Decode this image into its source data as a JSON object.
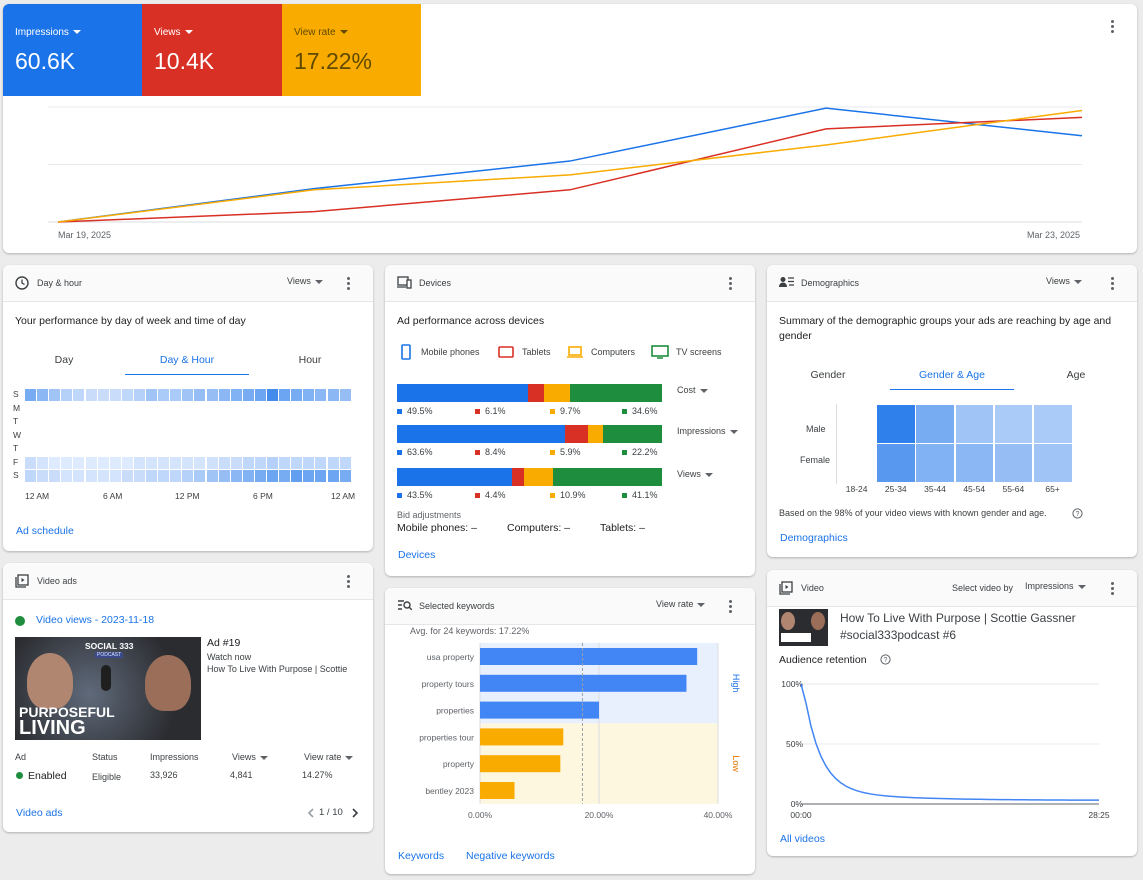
{
  "overview": {
    "kpis": [
      {
        "label": "Impressions",
        "value": "60.6K",
        "color": "#1a73e8"
      },
      {
        "label": "Views",
        "value": "10.4K",
        "color": "#d93025"
      },
      {
        "label": "View rate",
        "value": "17.22%",
        "color": "#f9ab00"
      }
    ],
    "x_start": "Mar 19, 2025",
    "x_end": "Mar 23, 2025"
  },
  "chart_data": {
    "type": "line",
    "x": [
      "Mar 19, 2025",
      "Mar 20, 2025",
      "Mar 21, 2025",
      "Mar 22, 2025",
      "Mar 23, 2025"
    ],
    "series": [
      {
        "name": "Impressions",
        "color": "#1a73e8",
        "values": [
          0,
          0.29,
          0.53,
          0.99,
          0.75
        ]
      },
      {
        "name": "Views",
        "color": "#d93025",
        "values": [
          0,
          0.09,
          0.28,
          0.81,
          0.91
        ]
      },
      {
        "name": "View rate",
        "color": "#f9ab00",
        "values": [
          0,
          0.28,
          0.41,
          0.67,
          0.97
        ]
      }
    ],
    "grid": true
  },
  "dayhour": {
    "title": "Day & hour",
    "metric": "Views",
    "subtitle": "Your performance by day of week and time of day",
    "tabs": [
      "Day",
      "Day & Hour",
      "Hour"
    ],
    "active_tab": 1,
    "days": [
      "S",
      "M",
      "T",
      "W",
      "T",
      "F",
      "S"
    ],
    "hours": [
      "12 AM",
      "6 AM",
      "12 PM",
      "6 PM",
      "12 AM"
    ],
    "link": "Ad schedule",
    "heat": [
      [
        0.55,
        0.45,
        0.35,
        0.25,
        0.2,
        0.15,
        0.15,
        0.15,
        0.2,
        0.25,
        0.35,
        0.3,
        0.3,
        0.35,
        0.4,
        0.4,
        0.45,
        0.5,
        0.55,
        0.6,
        0.8,
        0.6,
        0.55,
        0.5,
        0.45,
        0.45,
        0.4
      ],
      [
        0,
        0,
        0,
        0,
        0,
        0,
        0,
        0,
        0,
        0,
        0,
        0,
        0,
        0,
        0,
        0,
        0,
        0,
        0,
        0,
        0,
        0,
        0,
        0,
        0,
        0,
        0
      ],
      [
        0,
        0,
        0,
        0,
        0,
        0,
        0,
        0,
        0,
        0,
        0,
        0,
        0,
        0,
        0,
        0,
        0,
        0,
        0,
        0,
        0,
        0,
        0,
        0,
        0,
        0,
        0
      ],
      [
        0,
        0,
        0,
        0,
        0,
        0,
        0,
        0,
        0,
        0,
        0,
        0,
        0,
        0,
        0,
        0,
        0,
        0,
        0,
        0,
        0,
        0,
        0,
        0,
        0,
        0,
        0
      ],
      [
        0,
        0,
        0,
        0,
        0,
        0,
        0,
        0,
        0,
        0,
        0,
        0,
        0,
        0,
        0,
        0,
        0,
        0,
        0,
        0,
        0,
        0,
        0,
        0,
        0,
        0,
        0
      ],
      [
        0.15,
        0.1,
        0.05,
        0.05,
        0.05,
        0.05,
        0.05,
        0.05,
        0.05,
        0.1,
        0.1,
        0.1,
        0.1,
        0.1,
        0.1,
        0.12,
        0.15,
        0.15,
        0.2,
        0.2,
        0.25,
        0.2,
        0.2,
        0.2,
        0.2,
        0.2,
        0.2
      ],
      [
        0.2,
        0.15,
        0.15,
        0.1,
        0.1,
        0.1,
        0.1,
        0.1,
        0.15,
        0.15,
        0.2,
        0.2,
        0.2,
        0.25,
        0.3,
        0.35,
        0.4,
        0.45,
        0.5,
        0.55,
        0.6,
        0.55,
        0.65,
        0.6,
        0.6,
        0.6,
        0.55
      ]
    ]
  },
  "devices": {
    "title": "Devices",
    "subtitle": "Ad performance across devices",
    "legend": [
      {
        "label": "Mobile phones",
        "color": "#1a73e8",
        "icon": "mobile-phone-icon"
      },
      {
        "label": "Tablets",
        "color": "#d93025",
        "icon": "tablet-icon"
      },
      {
        "label": "Computers",
        "color": "#f9ab00",
        "icon": "computer-icon"
      },
      {
        "label": "TV screens",
        "color": "#1e8e3e",
        "icon": "tv-screen-icon"
      }
    ],
    "rows": [
      {
        "metric": "Cost",
        "values": [
          49.5,
          6.1,
          9.7,
          34.6
        ],
        "labels": [
          "49.5%",
          "6.1%",
          "9.7%",
          "34.6%"
        ]
      },
      {
        "metric": "Impressions",
        "values": [
          63.6,
          8.4,
          5.9,
          22.2
        ],
        "labels": [
          "63.6%",
          "8.4%",
          "5.9%",
          "22.2%"
        ]
      },
      {
        "metric": "Views",
        "values": [
          43.5,
          4.4,
          10.9,
          41.1
        ],
        "labels": [
          "43.5%",
          "4.4%",
          "10.9%",
          "41.1%"
        ]
      }
    ],
    "bid_title": "Bid adjustments",
    "bids": [
      "Mobile phones: –",
      "Computers: –",
      "Tablets: –"
    ],
    "link": "Devices"
  },
  "demographics": {
    "title": "Demographics",
    "metric": "Views",
    "subtitle": "Summary of the demographic groups your ads are reaching by age and gender",
    "tabs": [
      "Gender",
      "Gender & Age",
      "Age"
    ],
    "active_tab": 1,
    "genders": [
      "Male",
      "Female"
    ],
    "ages": [
      "18-24",
      "25-34",
      "35-44",
      "45-54",
      "55-64",
      "65+"
    ],
    "heat": [
      [
        0,
        0.9,
        0.55,
        0.35,
        0.3,
        0.3
      ],
      [
        0,
        0.7,
        0.5,
        0.45,
        0.4,
        0.35
      ]
    ],
    "note": "Based on the 98% of your video views with known gender and age.",
    "link": "Demographics"
  },
  "videoads": {
    "title": "Video ads",
    "status_title": "Video views - 2023-11-18",
    "ad_number": "Ad #19",
    "watch": "Watch now",
    "video_name": "How To Live With Purpose | Scottie",
    "thumb_brand": "SOCIAL 333",
    "thumb_sub": "PODCAST",
    "thumb_text1": "PURPOSEFUL",
    "thumb_text2": "LIVING",
    "cols": [
      "Ad",
      "Status",
      "Impressions",
      "Views",
      "View rate"
    ],
    "row": [
      "Enabled",
      "Eligible",
      "33,926",
      "4,841",
      "14.27%"
    ],
    "link": "Video ads",
    "pagination": "1 / 10"
  },
  "keywords": {
    "title": "Selected keywords",
    "metric": "View rate",
    "avg": "Avg. for 24 keywords: 17.22%",
    "items": [
      {
        "label": "usa property",
        "value": 36.5,
        "group": "High"
      },
      {
        "label": "property tours",
        "value": 34.7,
        "group": "High"
      },
      {
        "label": "properties",
        "value": 20.0,
        "group": "High"
      },
      {
        "label": "properties tour",
        "value": 14.0,
        "group": "Low"
      },
      {
        "label": "property",
        "value": 13.5,
        "group": "Low"
      },
      {
        "label": "bentley 2023",
        "value": 5.8,
        "group": "Low"
      }
    ],
    "avg_value": 17.22,
    "ticks": [
      "0.00%",
      "20.00%",
      "40.00%"
    ],
    "high": "High",
    "low": "Low",
    "links": [
      "Keywords",
      "Negative keywords"
    ]
  },
  "video": {
    "title": "Video",
    "select_label": "Select video by",
    "metric": "Impressions",
    "video_title": "How To Live With Purpose | Scottie Gassner #social333podcast #6",
    "retention_label": "Audience retention",
    "y_ticks": [
      "100%",
      "50%",
      "0%"
    ],
    "x_ticks": [
      "00:00",
      "28:25"
    ],
    "link": "All videos"
  }
}
